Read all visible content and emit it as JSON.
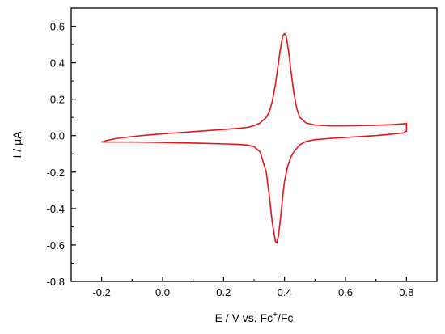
{
  "chart_data": {
    "type": "line",
    "title": "",
    "xlabel": "E / V vs. Fc",
    "xlabel_superscript": "+",
    "xlabel_suffix": "/Fc",
    "ylabel": "I / μA",
    "xlim": [
      -0.3,
      0.9
    ],
    "ylim": [
      -0.8,
      0.7
    ],
    "xticks": [
      -0.2,
      0.0,
      0.2,
      0.4,
      0.6,
      0.8
    ],
    "xtick_labels": [
      "-0.2",
      "0.0",
      "0.2",
      "0.4",
      "0.6",
      "0.8"
    ],
    "yticks": [
      -0.8,
      -0.6,
      -0.4,
      -0.2,
      0.0,
      0.2,
      0.4,
      0.6
    ],
    "ytick_labels": [
      "-0.8",
      "-0.6",
      "-0.4",
      "-0.2",
      "0.0",
      "0.2",
      "0.4",
      "0.6"
    ],
    "grid": false,
    "legend": "none",
    "series": [
      {
        "color": "#e8141b",
        "x": [
          -0.2,
          -0.18,
          -0.15,
          -0.1,
          -0.05,
          0.0,
          0.05,
          0.1,
          0.15,
          0.2,
          0.25,
          0.28,
          0.3,
          0.32,
          0.34,
          0.35,
          0.36,
          0.37,
          0.38,
          0.385,
          0.39,
          0.395,
          0.4,
          0.405,
          0.41,
          0.415,
          0.42,
          0.43,
          0.44,
          0.45,
          0.47,
          0.5,
          0.55,
          0.6,
          0.65,
          0.7,
          0.75,
          0.79,
          0.8,
          0.8,
          0.8,
          0.79,
          0.75,
          0.7,
          0.65,
          0.6,
          0.55,
          0.5,
          0.47,
          0.45,
          0.43,
          0.42,
          0.41,
          0.4,
          0.395,
          0.39,
          0.385,
          0.38,
          0.375,
          0.37,
          0.36,
          0.35,
          0.34,
          0.32,
          0.3,
          0.28,
          0.25,
          0.2,
          0.15,
          0.1,
          0.05,
          0.0,
          -0.05,
          -0.1,
          -0.15,
          -0.2
        ],
        "y": [
          -0.035,
          -0.025,
          -0.015,
          -0.005,
          0.003,
          0.01,
          0.016,
          0.022,
          0.028,
          0.034,
          0.04,
          0.046,
          0.055,
          0.07,
          0.1,
          0.13,
          0.19,
          0.28,
          0.4,
          0.46,
          0.51,
          0.55,
          0.56,
          0.55,
          0.5,
          0.44,
          0.37,
          0.24,
          0.15,
          0.1,
          0.07,
          0.058,
          0.054,
          0.054,
          0.055,
          0.057,
          0.06,
          0.065,
          0.068,
          0.045,
          0.025,
          0.015,
          0.008,
          0.0,
          -0.005,
          -0.01,
          -0.015,
          -0.022,
          -0.032,
          -0.05,
          -0.09,
          -0.12,
          -0.17,
          -0.25,
          -0.32,
          -0.4,
          -0.48,
          -0.55,
          -0.59,
          -0.58,
          -0.48,
          -0.33,
          -0.2,
          -0.09,
          -0.06,
          -0.052,
          -0.048,
          -0.045,
          -0.043,
          -0.041,
          -0.039,
          -0.037,
          -0.036,
          -0.035,
          -0.035,
          -0.035
        ]
      }
    ]
  }
}
